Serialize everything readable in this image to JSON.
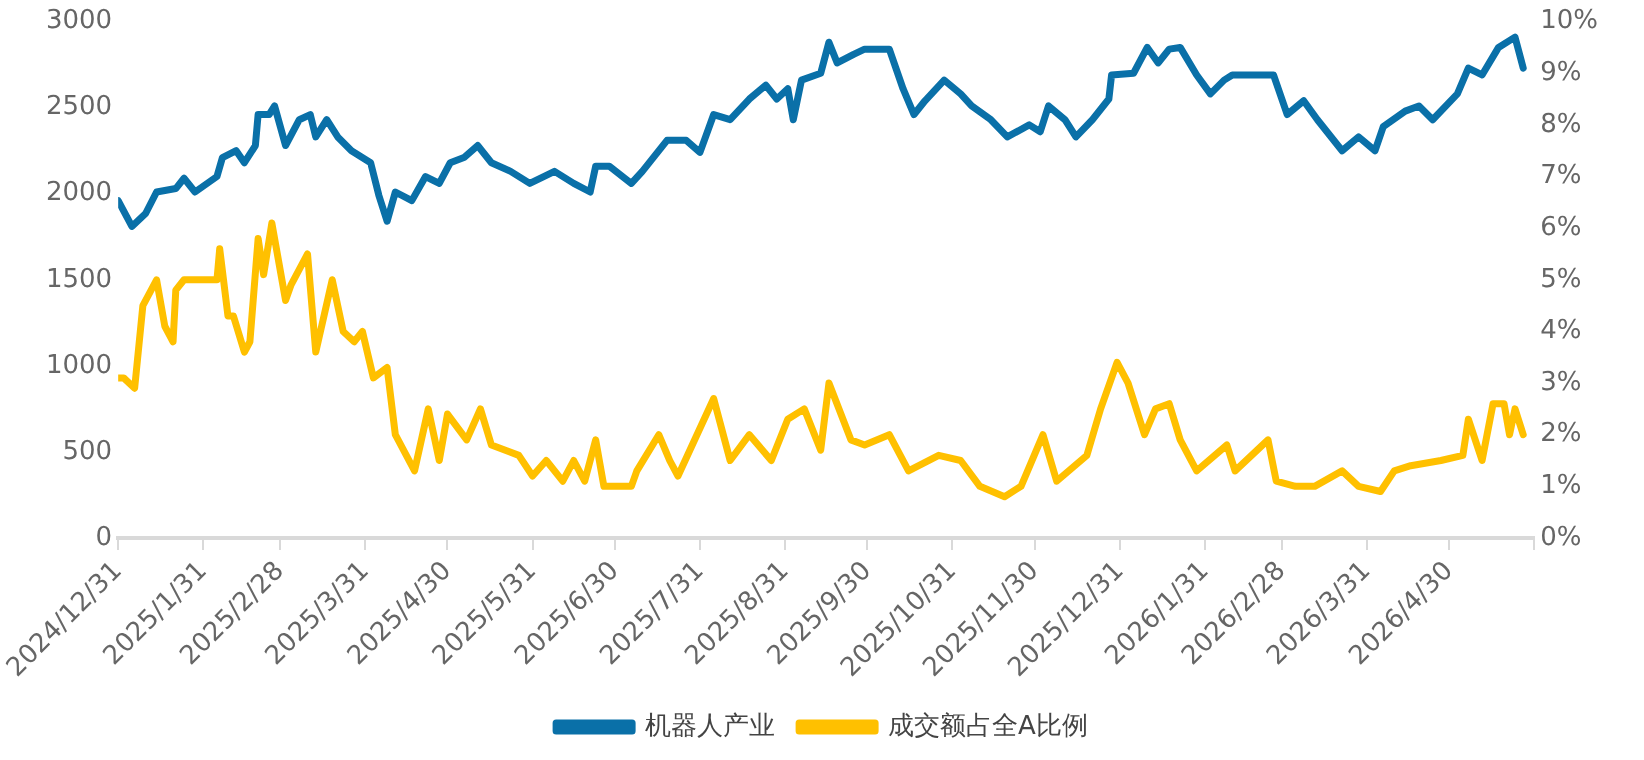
{
  "chart_data": {
    "type": "line",
    "xlim": [
      "2024-12-31",
      "2026-05-31"
    ],
    "xticks": [
      {
        "value": "2024-12-31",
        "label": "2024/12/31"
      },
      {
        "value": "2025-01-31",
        "label": "2025/1/31"
      },
      {
        "value": "2025-02-28",
        "label": "2025/2/28"
      },
      {
        "value": "2025-03-31",
        "label": "2025/3/31"
      },
      {
        "value": "2025-04-30",
        "label": "2025/4/30"
      },
      {
        "value": "2025-05-31",
        "label": "2025/5/31"
      },
      {
        "value": "2025-06-30",
        "label": "2025/6/30"
      },
      {
        "value": "2025-07-31",
        "label": "2025/7/31"
      },
      {
        "value": "2025-08-31",
        "label": "2025/8/31"
      },
      {
        "value": "2025-09-30",
        "label": "2025/9/30"
      },
      {
        "value": "2025-10-31",
        "label": "2025/10/31"
      },
      {
        "value": "2025-11-30",
        "label": "2025/11/30"
      },
      {
        "value": "2025-12-31",
        "label": "2025/12/31"
      },
      {
        "value": "2026-01-31",
        "label": "2026/1/31"
      },
      {
        "value": "2026-02-28",
        "label": "2026/2/28"
      },
      {
        "value": "2026-03-31",
        "label": "2026/3/31"
      },
      {
        "value": "2026-04-30",
        "label": "2026/4/30"
      },
      {
        "value": "2026-05-31",
        "label": null
      }
    ],
    "ylim": [
      0,
      3000
    ],
    "yticks": [
      0,
      500,
      1000,
      1500,
      2000,
      2500,
      3000
    ],
    "y2lim": [
      0,
      10
    ],
    "y2ticks": [
      {
        "value": 0,
        "label": "0%"
      },
      {
        "value": 1,
        "label": "1%"
      },
      {
        "value": 2,
        "label": "2%"
      },
      {
        "value": 3,
        "label": "3%"
      },
      {
        "value": 4,
        "label": "4%"
      },
      {
        "value": 5,
        "label": "5%"
      },
      {
        "value": 6,
        "label": "6%"
      },
      {
        "value": 7,
        "label": "7%"
      },
      {
        "value": 8,
        "label": "8%"
      },
      {
        "value": 9,
        "label": "9%"
      },
      {
        "value": 10,
        "label": "10%"
      }
    ],
    "grid": false,
    "legend": "bottom",
    "marker": "none",
    "line_style": "solid",
    "series": [
      {
        "name": "机器人产业",
        "color": "#0a70a8",
        "x": [
          "2024-12-31",
          "2025-01-05",
          "2025-01-10",
          "2025-01-14",
          "2025-01-21",
          "2025-01-24",
          "2025-01-28",
          "2025-02-05",
          "2025-02-07",
          "2025-02-12",
          "2025-02-15",
          "2025-02-19",
          "2025-02-20",
          "2025-02-24",
          "2025-02-26",
          "2025-03-02",
          "2025-03-07",
          "2025-03-11",
          "2025-03-13",
          "2025-03-17",
          "2025-03-21",
          "2025-03-26",
          "2025-04-02",
          "2025-04-05",
          "2025-04-08",
          "2025-04-11",
          "2025-04-17",
          "2025-04-22",
          "2025-04-27",
          "2025-05-01",
          "2025-05-06",
          "2025-05-11",
          "2025-05-16",
          "2025-05-23",
          "2025-05-30",
          "2025-06-08",
          "2025-06-15",
          "2025-06-21",
          "2025-06-23",
          "2025-06-28",
          "2025-07-06",
          "2025-07-10",
          "2025-07-19",
          "2025-07-26",
          "2025-07-31",
          "2025-08-05",
          "2025-08-11",
          "2025-08-18",
          "2025-08-24",
          "2025-08-28",
          "2025-09-01",
          "2025-09-03",
          "2025-09-06",
          "2025-09-13",
          "2025-09-16",
          "2025-09-19",
          "2025-09-25",
          "2025-09-29",
          "2025-10-08",
          "2025-10-13",
          "2025-10-17",
          "2025-10-21",
          "2025-10-28",
          "2025-11-03",
          "2025-11-07",
          "2025-11-14",
          "2025-11-20",
          "2025-11-28",
          "2025-12-02",
          "2025-12-05",
          "2025-12-11",
          "2025-12-15",
          "2025-12-21",
          "2025-12-27",
          "2025-12-28",
          "2026-01-05",
          "2026-01-10",
          "2026-01-14",
          "2026-01-18",
          "2026-01-22",
          "2026-01-28",
          "2026-02-02",
          "2026-02-07",
          "2026-02-10",
          "2026-02-25",
          "2026-03-02",
          "2026-03-08",
          "2026-03-13",
          "2026-03-22",
          "2026-03-28",
          "2026-04-03",
          "2026-04-06",
          "2026-04-14",
          "2026-04-19",
          "2026-04-24",
          "2026-05-03",
          "2026-05-07",
          "2026-05-12",
          "2026-05-18",
          "2026-05-24",
          "2026-05-27"
        ],
        "values": [
          1960,
          1810,
          1885,
          2010,
          2030,
          2090,
          2010,
          2100,
          2210,
          2250,
          2180,
          2280,
          2460,
          2460,
          2510,
          2280,
          2430,
          2460,
          2330,
          2430,
          2330,
          2250,
          2180,
          1990,
          1840,
          2010,
          1960,
          2100,
          2060,
          2180,
          2210,
          2280,
          2180,
          2130,
          2060,
          2130,
          2060,
          2010,
          2160,
          2160,
          2060,
          2130,
          2310,
          2310,
          2240,
          2460,
          2430,
          2550,
          2630,
          2550,
          2610,
          2430,
          2660,
          2700,
          2880,
          2760,
          2810,
          2840,
          2840,
          2610,
          2460,
          2540,
          2660,
          2580,
          2510,
          2430,
          2330,
          2400,
          2360,
          2510,
          2430,
          2330,
          2430,
          2550,
          2690,
          2700,
          2850,
          2760,
          2840,
          2850,
          2690,
          2580,
          2660,
          2690,
          2690,
          2460,
          2540,
          2430,
          2250,
          2330,
          2250,
          2390,
          2480,
          2510,
          2430,
          2580,
          2730,
          2690,
          2850,
          2910,
          2730
        ]
      },
      {
        "name": "成交额占全A比例",
        "color": "#ffc000",
        "axis": "y2",
        "x": [
          "2024-12-31",
          "2025-01-02",
          "2025-01-06",
          "2025-01-09",
          "2025-01-14",
          "2025-01-17",
          "2025-01-20",
          "2025-01-21",
          "2025-01-24",
          "2025-02-05",
          "2025-02-06",
          "2025-02-09",
          "2025-02-11",
          "2025-02-15",
          "2025-02-17",
          "2025-02-20",
          "2025-02-22",
          "2025-02-25",
          "2025-03-02",
          "2025-03-04",
          "2025-03-10",
          "2025-03-13",
          "2025-03-19",
          "2025-03-23",
          "2025-03-27",
          "2025-03-30",
          "2025-04-03",
          "2025-04-08",
          "2025-04-11",
          "2025-04-18",
          "2025-04-23",
          "2025-04-27",
          "2025-04-30",
          "2025-05-07",
          "2025-05-12",
          "2025-05-16",
          "2025-05-26",
          "2025-05-31",
          "2025-06-05",
          "2025-06-11",
          "2025-06-15",
          "2025-06-19",
          "2025-06-23",
          "2025-06-26",
          "2025-07-06",
          "2025-07-08",
          "2025-07-16",
          "2025-07-20",
          "2025-07-23",
          "2025-08-05",
          "2025-08-11",
          "2025-08-18",
          "2025-08-26",
          "2025-09-01",
          "2025-09-07",
          "2025-09-13",
          "2025-09-16",
          "2025-09-24",
          "2025-09-29",
          "2025-10-08",
          "2025-10-15",
          "2025-10-26",
          "2025-11-03",
          "2025-11-10",
          "2025-11-19",
          "2025-11-25",
          "2025-12-03",
          "2025-12-08",
          "2025-12-19",
          "2025-12-24",
          "2025-12-30",
          "2026-01-03",
          "2026-01-09",
          "2026-01-13",
          "2026-01-18",
          "2026-01-22",
          "2026-01-28",
          "2026-02-08",
          "2026-02-11",
          "2026-02-23",
          "2026-02-26",
          "2026-03-05",
          "2026-03-12",
          "2026-03-22",
          "2026-03-28",
          "2026-04-05",
          "2026-04-10",
          "2026-04-16",
          "2026-04-27",
          "2026-05-05",
          "2026-05-07",
          "2026-05-12",
          "2026-05-16",
          "2026-05-20",
          "2026-05-22",
          "2026-05-24",
          "2026-05-27"
        ],
        "values": [
          3.1,
          3.1,
          2.9,
          4.5,
          5.0,
          4.1,
          3.8,
          4.8,
          5.0,
          5.0,
          5.6,
          4.3,
          4.3,
          3.6,
          3.8,
          5.8,
          5.1,
          6.1,
          4.6,
          4.9,
          5.5,
          3.6,
          5.0,
          4.0,
          3.8,
          4.0,
          3.1,
          3.3,
          2.0,
          1.3,
          2.5,
          1.5,
          2.4,
          1.9,
          2.5,
          1.8,
          1.6,
          1.2,
          1.5,
          1.1,
          1.5,
          1.1,
          1.9,
          1.0,
          1.0,
          1.3,
          2.0,
          1.5,
          1.2,
          2.7,
          1.5,
          2.0,
          1.5,
          2.3,
          2.5,
          1.7,
          3.0,
          1.9,
          1.8,
          2.0,
          1.3,
          1.6,
          1.5,
          1.0,
          0.8,
          1.0,
          2.0,
          1.1,
          1.6,
          2.5,
          3.4,
          3.0,
          2.0,
          2.5,
          2.6,
          1.9,
          1.3,
          1.8,
          1.3,
          1.9,
          1.1,
          1.0,
          1.0,
          1.3,
          1.0,
          0.9,
          1.3,
          1.4,
          1.5,
          1.6,
          2.3,
          1.5,
          2.6,
          2.6,
          2.0,
          2.5,
          2.0
        ]
      }
    ]
  }
}
